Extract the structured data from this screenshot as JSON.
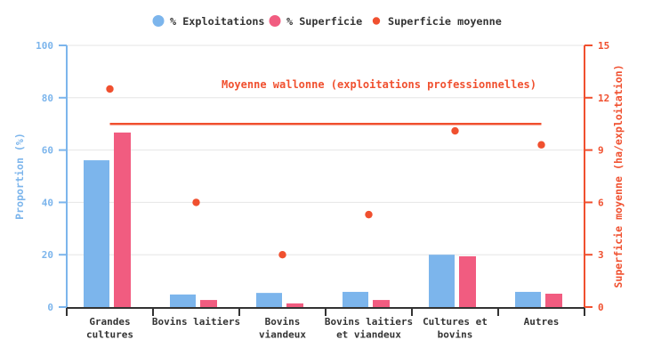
{
  "legend": {
    "items": [
      {
        "label": "% Exploitations",
        "color": "#7cb5ec",
        "marker": "circle-large"
      },
      {
        "label": "% Superficie",
        "color": "#f15c80",
        "marker": "circle-large"
      },
      {
        "label": "Superficie moyenne",
        "color": "#f0502f",
        "marker": "circle-small"
      }
    ]
  },
  "chart_data": {
    "type": "bar",
    "title": "",
    "categories": [
      "Grandes cultures",
      "Bovins laitiers",
      "Bovins viandeux",
      "Bovins laitiers et viandeux",
      "Cultures et bovins",
      "Autres"
    ],
    "category_lines": [
      [
        "Grandes",
        "cultures"
      ],
      [
        "Bovins laitiers"
      ],
      [
        "Bovins",
        "viandeux"
      ],
      [
        "Bovins laitiers",
        "et viandeux"
      ],
      [
        "Cultures et",
        "bovins"
      ],
      [
        "Autres"
      ]
    ],
    "series": [
      {
        "name": "% Exploitations",
        "type": "bar",
        "axis": "left",
        "color": "#7cb5ec",
        "values": [
          56.1,
          4.8,
          5.4,
          5.8,
          20.0,
          5.8
        ]
      },
      {
        "name": "% Superficie",
        "type": "bar",
        "axis": "left",
        "color": "#f15c80",
        "values": [
          66.7,
          2.7,
          1.4,
          2.7,
          19.4,
          5.1
        ]
      },
      {
        "name": "Superficie moyenne",
        "type": "scatter",
        "axis": "right",
        "color": "#f0502f",
        "values": [
          12.5,
          6.0,
          3.0,
          5.3,
          10.1,
          9.3
        ]
      }
    ],
    "xlabel": "",
    "y_left": {
      "label": "Proportion (%)",
      "min": 0,
      "max": 100,
      "ticks": [
        0,
        20,
        40,
        60,
        80,
        100
      ],
      "color": "#7cb5ec"
    },
    "y_right": {
      "label": "Superficie moyenne (ha/exploitation)",
      "min": 0,
      "max": 15,
      "ticks": [
        0,
        3,
        6,
        9,
        12,
        15
      ],
      "color": "#f0502f"
    },
    "reference_line": {
      "value": 10.5,
      "axis": "right",
      "label": "Moyenne wallonne (exploitations professionnelles)",
      "color": "#f0502f"
    },
    "grid": true,
    "legend_position": "top"
  }
}
